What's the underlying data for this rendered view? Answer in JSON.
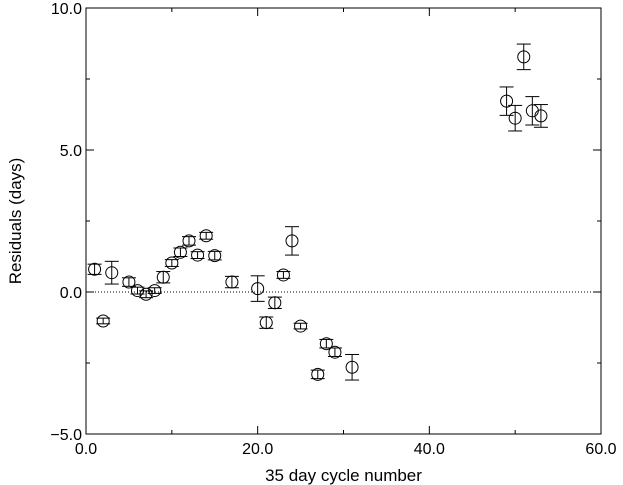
{
  "chart_data": {
    "type": "scatter",
    "xlabel": "35 day cycle number",
    "ylabel": "Residuals (days)",
    "xlim": [
      0,
      60
    ],
    "ylim": [
      -5,
      10
    ],
    "x_ticks": [
      0,
      20,
      40,
      60
    ],
    "x_tick_labels": [
      "0.0",
      "20.0",
      "40.0",
      "60.0"
    ],
    "y_ticks": [
      -5,
      0,
      5,
      10
    ],
    "y_tick_labels": [
      "−5.0",
      "0.0",
      "5.0",
      "10.0"
    ],
    "grid": false,
    "reference_line": {
      "y": 0,
      "style": "dotted"
    },
    "marker": "open-circle",
    "color": "#000000",
    "points": [
      {
        "x": 1,
        "y": 0.8,
        "err": 0.18
      },
      {
        "x": 2,
        "y": -1.02,
        "err": 0.1
      },
      {
        "x": 3,
        "y": 0.68,
        "err": 0.4
      },
      {
        "x": 5,
        "y": 0.35,
        "err": 0.15
      },
      {
        "x": 6,
        "y": 0.05,
        "err": 0.12
      },
      {
        "x": 7,
        "y": -0.08,
        "err": 0.12
      },
      {
        "x": 8,
        "y": 0.05,
        "err": 0.1
      },
      {
        "x": 9,
        "y": 0.52,
        "err": 0.2
      },
      {
        "x": 10,
        "y": 1.02,
        "err": 0.12
      },
      {
        "x": 11,
        "y": 1.4,
        "err": 0.15
      },
      {
        "x": 12,
        "y": 1.8,
        "err": 0.15
      },
      {
        "x": 13,
        "y": 1.3,
        "err": 0.12
      },
      {
        "x": 14,
        "y": 1.98,
        "err": 0.12
      },
      {
        "x": 15,
        "y": 1.28,
        "err": 0.15
      },
      {
        "x": 17,
        "y": 0.35,
        "err": 0.2
      },
      {
        "x": 20,
        "y": 0.12,
        "err": 0.45
      },
      {
        "x": 21,
        "y": -1.08,
        "err": 0.2
      },
      {
        "x": 22,
        "y": -0.38,
        "err": 0.2
      },
      {
        "x": 23,
        "y": 0.6,
        "err": 0.12
      },
      {
        "x": 24,
        "y": 1.8,
        "err": 0.5
      },
      {
        "x": 25,
        "y": -1.2,
        "err": 0.1
      },
      {
        "x": 27,
        "y": -2.9,
        "err": 0.15
      },
      {
        "x": 28,
        "y": -1.82,
        "err": 0.15
      },
      {
        "x": 29,
        "y": -2.12,
        "err": 0.15
      },
      {
        "x": 31,
        "y": -2.65,
        "err": 0.45
      },
      {
        "x": 49,
        "y": 6.72,
        "err": 0.5
      },
      {
        "x": 50,
        "y": 6.12,
        "err": 0.45
      },
      {
        "x": 51,
        "y": 8.28,
        "err": 0.45
      },
      {
        "x": 52,
        "y": 6.38,
        "err": 0.5
      },
      {
        "x": 53,
        "y": 6.2,
        "err": 0.4
      }
    ]
  }
}
